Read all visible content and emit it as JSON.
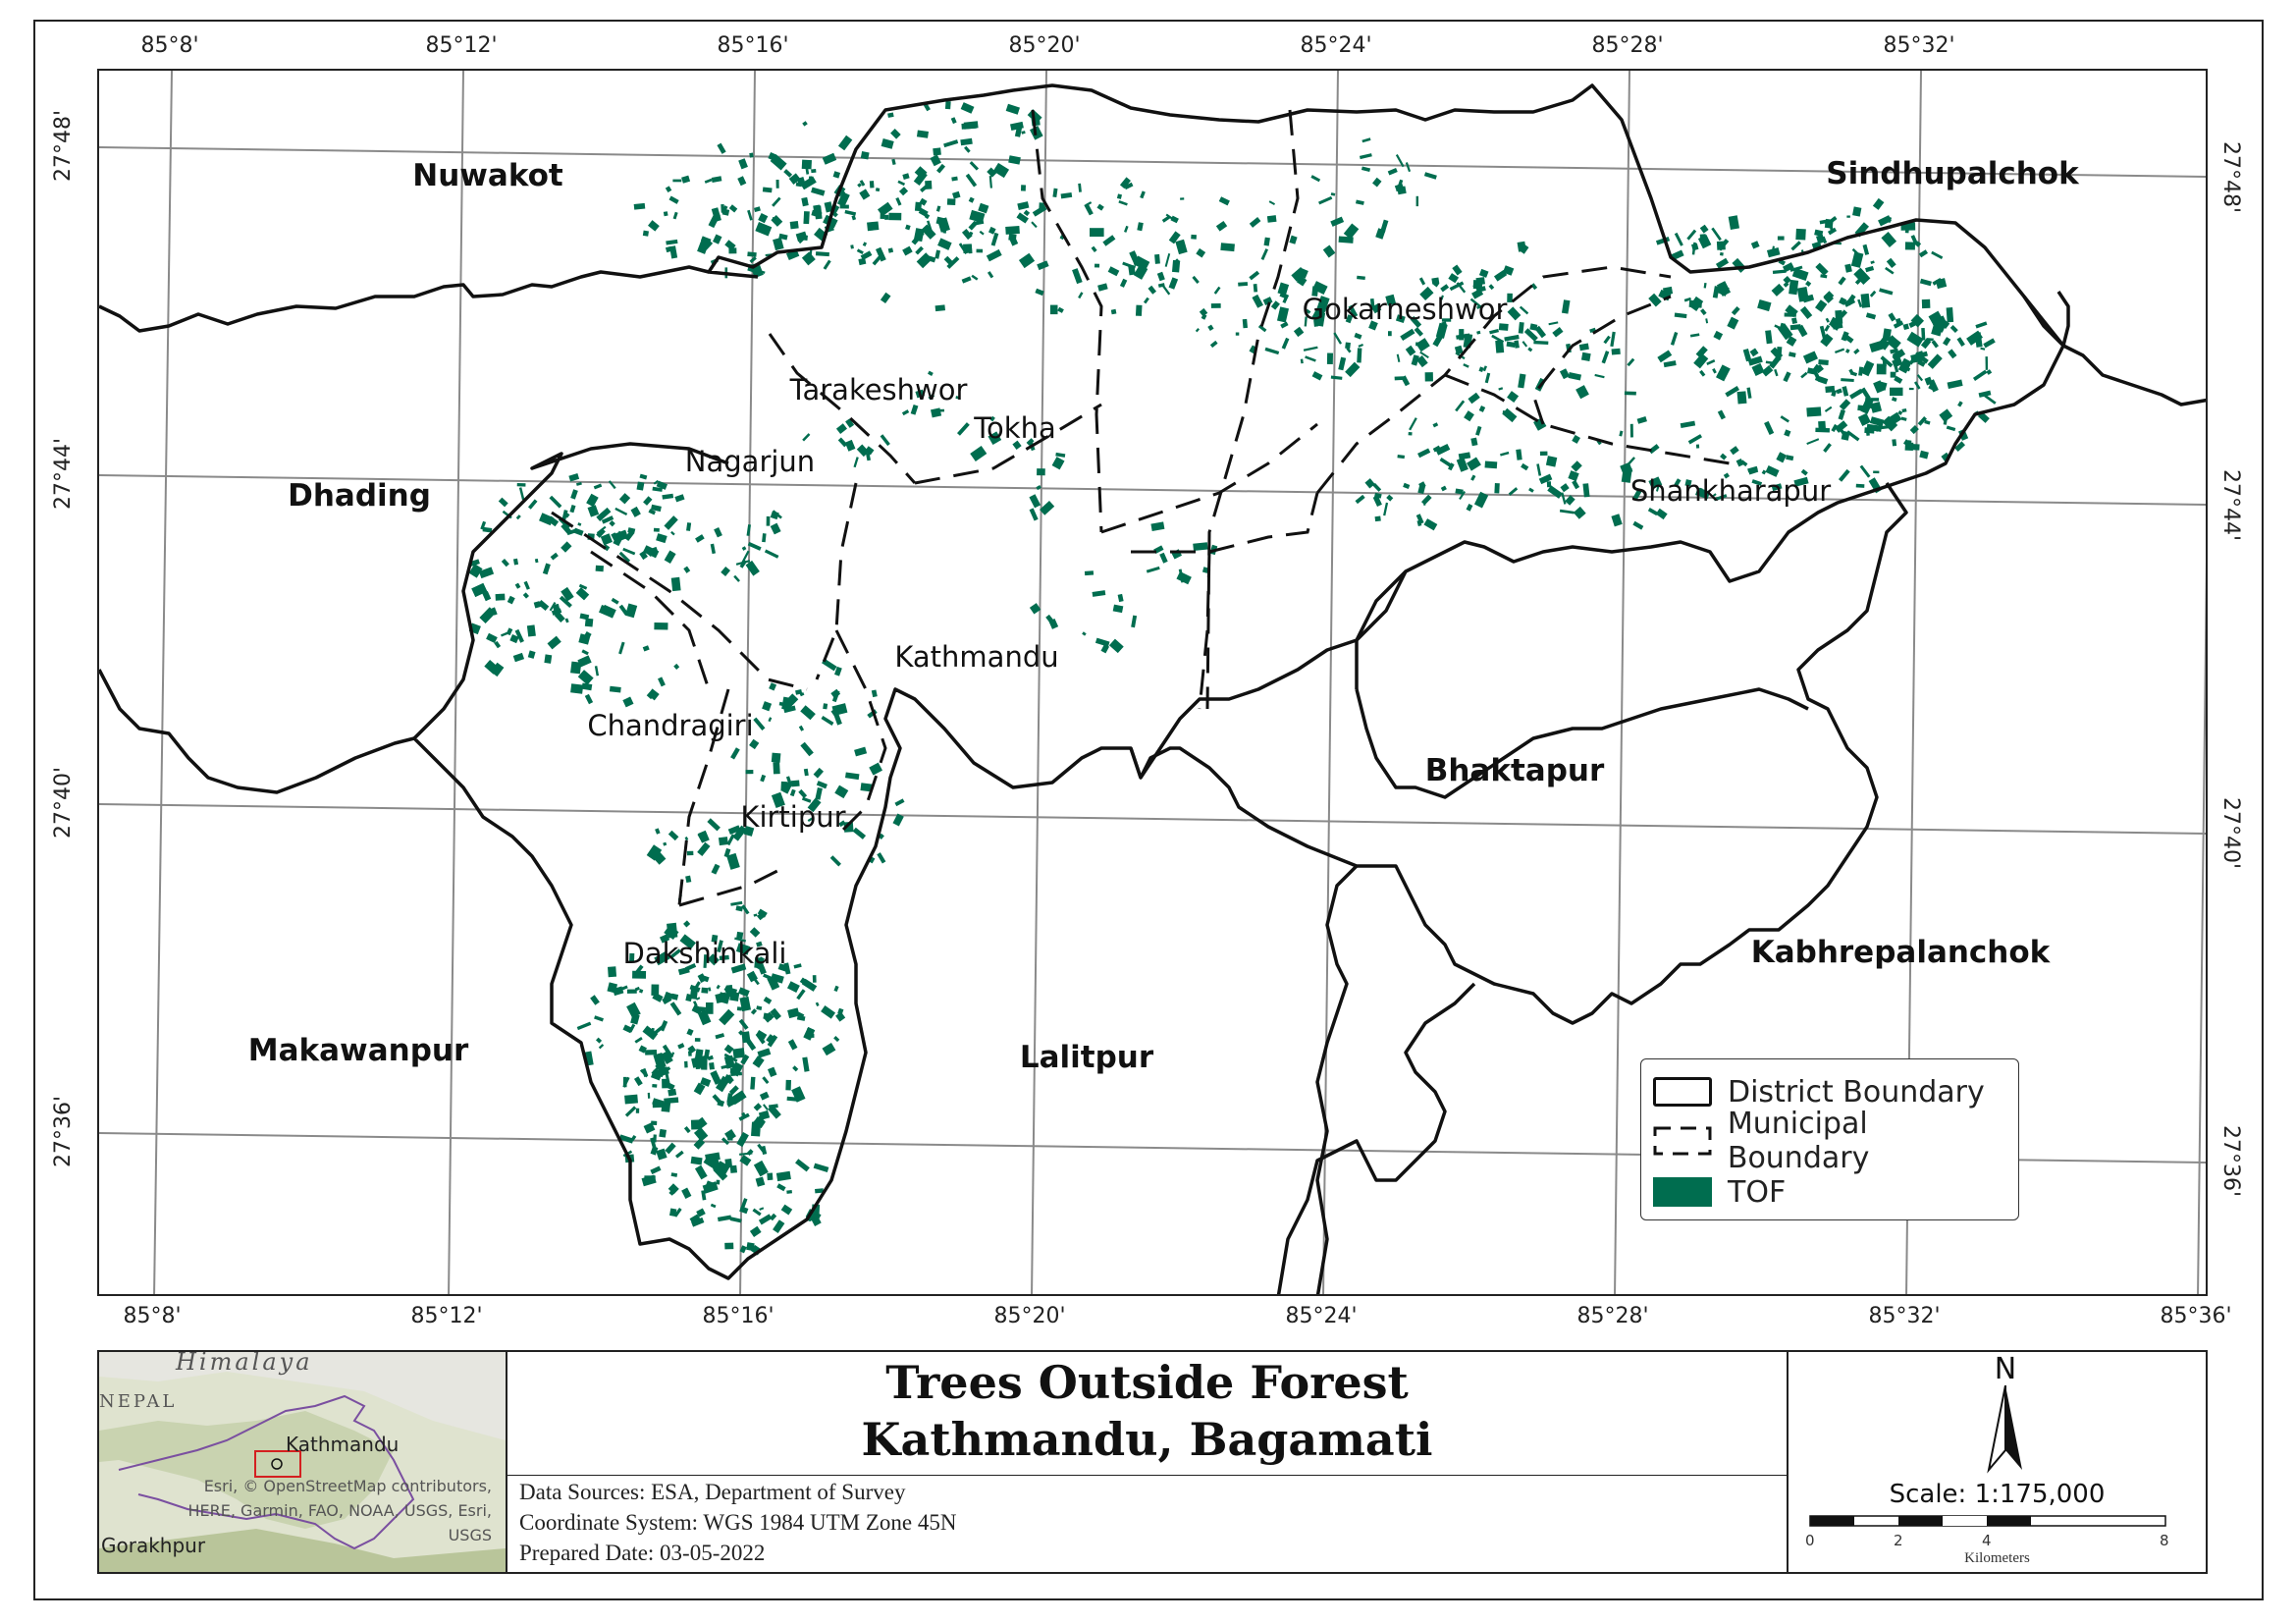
{
  "map": {
    "longitude_ticks": [
      "85°8'",
      "85°12'",
      "85°16'",
      "85°20'",
      "85°24'",
      "85°28'",
      "85°32'",
      "85°36'"
    ],
    "latitude_ticks": [
      "27°48'",
      "27°44'",
      "27°40'",
      "27°36'"
    ],
    "districts": [
      {
        "name": "Nuwakot"
      },
      {
        "name": "Sindhupalchok"
      },
      {
        "name": "Dhading"
      },
      {
        "name": "Bhaktapur"
      },
      {
        "name": "Kabhrepalanchok"
      },
      {
        "name": "Makawanpur"
      },
      {
        "name": "Lalitpur"
      }
    ],
    "municipalities": [
      {
        "name": "Gokarneshwor"
      },
      {
        "name": "Tarakeshwor"
      },
      {
        "name": "Tokha"
      },
      {
        "name": "Nagarjun"
      },
      {
        "name": "Shankharapur"
      },
      {
        "name": "Kathmandu"
      },
      {
        "name": "Chandragiri"
      },
      {
        "name": "Kirtipur"
      },
      {
        "name": "Dakshinkali"
      }
    ],
    "tof_color": "#006d4f"
  },
  "legend": {
    "items": [
      {
        "label": "District Boundary",
        "symbol": "solid-box"
      },
      {
        "label": "Municipal Boundary",
        "symbol": "dashed-box"
      },
      {
        "label": "TOF",
        "symbol": "filled-green"
      }
    ]
  },
  "inset": {
    "labels": {
      "himalaya": "Himalaya",
      "nepal": "NEPAL",
      "kathmandu": "Kathmandu",
      "gorakhpur": "Gorakhpur"
    },
    "credit": [
      "Esri, © OpenStreetMap contributors,",
      "HERE, Garmin, FAO, NOAA, USGS, Esri,",
      "USGS"
    ]
  },
  "title": {
    "line1": "Trees Outside Forest",
    "line2": "Kathmandu, Bagamati"
  },
  "info": {
    "sources": "Data Sources: ESA, Department of Survey",
    "crs": "Coordinate System: WGS 1984 UTM Zone 45N",
    "date": "Prepared Date: 03-05-2022"
  },
  "scale": {
    "north": "N",
    "text": "Scale: 1:175,000",
    "ticks": [
      "0",
      "2",
      "4",
      "8"
    ],
    "unit": "Kilometers"
  }
}
